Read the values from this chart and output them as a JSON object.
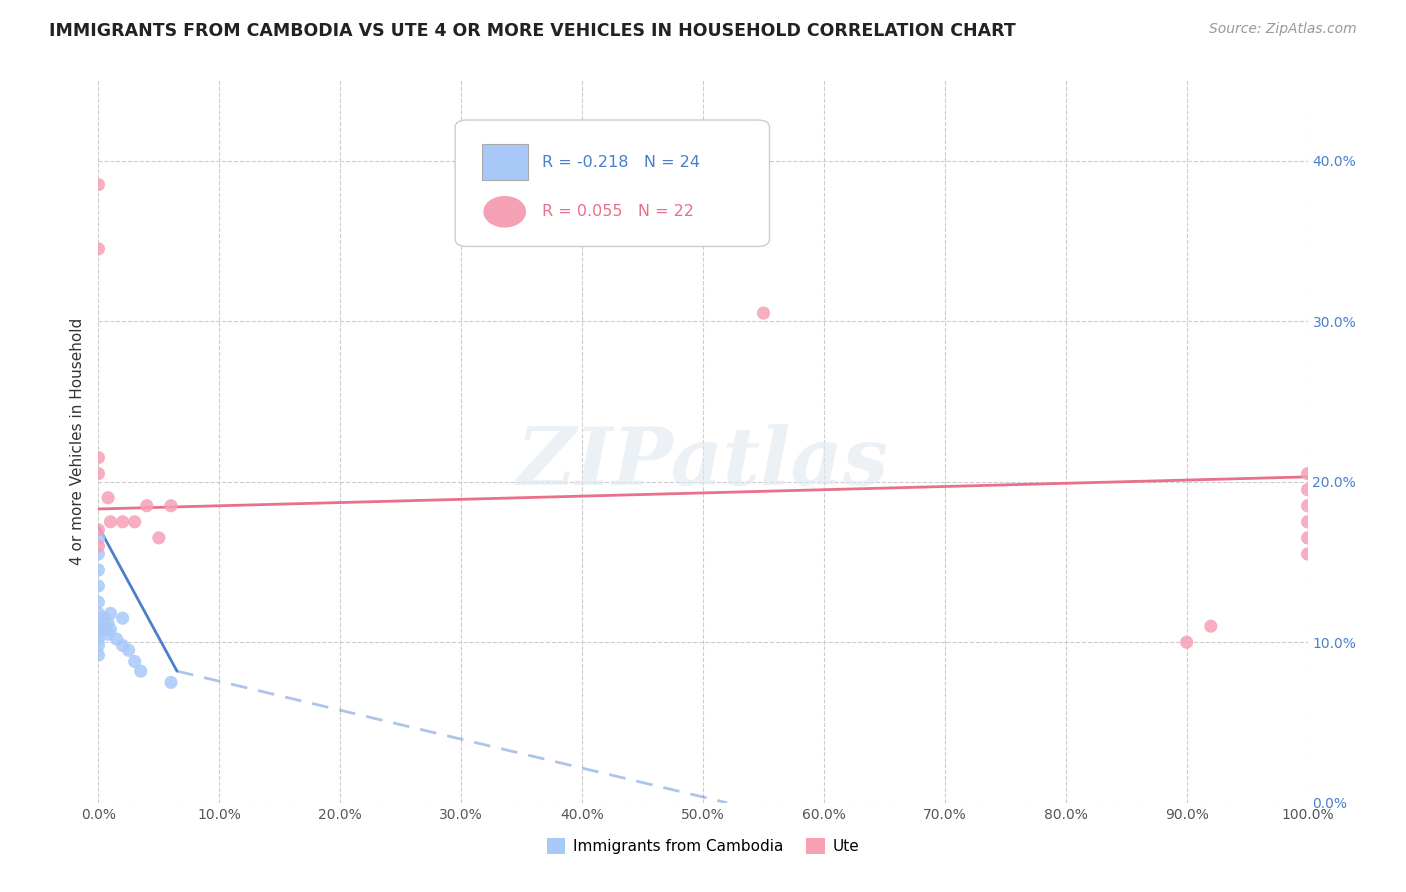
{
  "title": "IMMIGRANTS FROM CAMBODIA VS UTE 4 OR MORE VEHICLES IN HOUSEHOLD CORRELATION CHART",
  "source": "Source: ZipAtlas.com",
  "ylabel": "4 or more Vehicles in Household",
  "xlim": [
    0.0,
    1.0
  ],
  "ylim": [
    0.0,
    0.45
  ],
  "xticks": [
    0.0,
    0.1,
    0.2,
    0.3,
    0.4,
    0.5,
    0.6,
    0.7,
    0.8,
    0.9,
    1.0
  ],
  "xtick_labels": [
    "0.0%",
    "10.0%",
    "20.0%",
    "30.0%",
    "40.0%",
    "50.0%",
    "60.0%",
    "70.0%",
    "80.0%",
    "90.0%",
    "100.0%"
  ],
  "yticks": [
    0.0,
    0.1,
    0.2,
    0.3,
    0.4
  ],
  "ytick_labels": [
    "0.0%",
    "10.0%",
    "20.0%",
    "30.0%",
    "40.0%"
  ],
  "color_cambodia": "#a8c8f8",
  "color_ute": "#f5a0b5",
  "trendline_cambodia_color": "#4a7fcb",
  "trendline_ute_color": "#e8708a",
  "watermark": "ZIPatlas",
  "legend_text1": "R = -0.218   N = 24",
  "legend_text2": "R = 0.055   N = 22",
  "legend_color1": "#4a7fcb",
  "legend_color2": "#e8708a",
  "ytick_color": "#4a7fcb",
  "xtick_color": "#555555",
  "cambodia_x": [
    0.0,
    0.0,
    0.0,
    0.0,
    0.0,
    0.0,
    0.0,
    0.0,
    0.0,
    0.0,
    0.0,
    0.005,
    0.005,
    0.008,
    0.008,
    0.01,
    0.01,
    0.015,
    0.02,
    0.02,
    0.025,
    0.03,
    0.035,
    0.06
  ],
  "cambodia_y": [
    0.165,
    0.155,
    0.145,
    0.135,
    0.125,
    0.118,
    0.112,
    0.107,
    0.102,
    0.098,
    0.092,
    0.115,
    0.108,
    0.112,
    0.105,
    0.118,
    0.108,
    0.102,
    0.115,
    0.098,
    0.095,
    0.088,
    0.082,
    0.075
  ],
  "ute_x": [
    0.0,
    0.0,
    0.0,
    0.0,
    0.0,
    0.0,
    0.008,
    0.01,
    0.02,
    0.03,
    0.04,
    0.05,
    0.06,
    0.55,
    0.9,
    0.92,
    1.0,
    1.0,
    1.0,
    1.0,
    1.0,
    1.0
  ],
  "ute_y": [
    0.385,
    0.345,
    0.215,
    0.205,
    0.17,
    0.16,
    0.19,
    0.175,
    0.175,
    0.175,
    0.185,
    0.165,
    0.185,
    0.305,
    0.1,
    0.11,
    0.205,
    0.195,
    0.185,
    0.175,
    0.165,
    0.155
  ],
  "trendline_cam_x0": 0.0,
  "trendline_cam_x1": 0.065,
  "trendline_cam_y0": 0.172,
  "trendline_cam_y1": 0.082,
  "trendline_cam_dash_x0": 0.065,
  "trendline_cam_dash_x1": 0.52,
  "trendline_cam_dash_y0": 0.082,
  "trendline_cam_dash_y1": 0.0,
  "trendline_ute_x0": 0.0,
  "trendline_ute_x1": 1.0,
  "trendline_ute_y0": 0.183,
  "trendline_ute_y1": 0.203
}
